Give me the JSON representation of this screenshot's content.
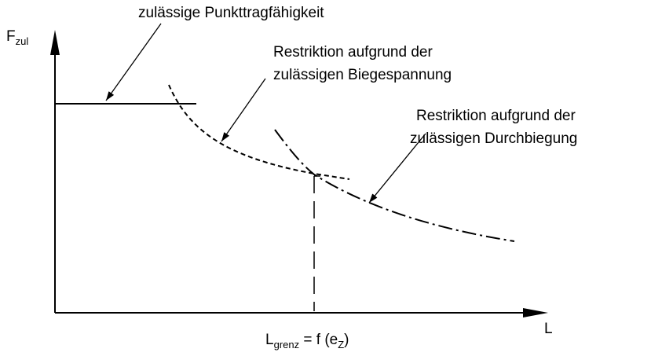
{
  "y_axis_label": {
    "main": "F",
    "sub": "zul"
  },
  "x_axis_label": "L",
  "labels": {
    "point_load": "zulässige Punkttragfähigkeit",
    "bending": [
      "Restriktion aufgrund der",
      "zulässigen Biegespannung"
    ],
    "deflection": [
      "Restriktion aufgrund der",
      "zulässigen Durchbiegung"
    ]
  },
  "limit_label": {
    "main": "L",
    "sub": "grenz",
    "middle": " = f (e",
    "sub2": "Z",
    "end": ")"
  }
}
